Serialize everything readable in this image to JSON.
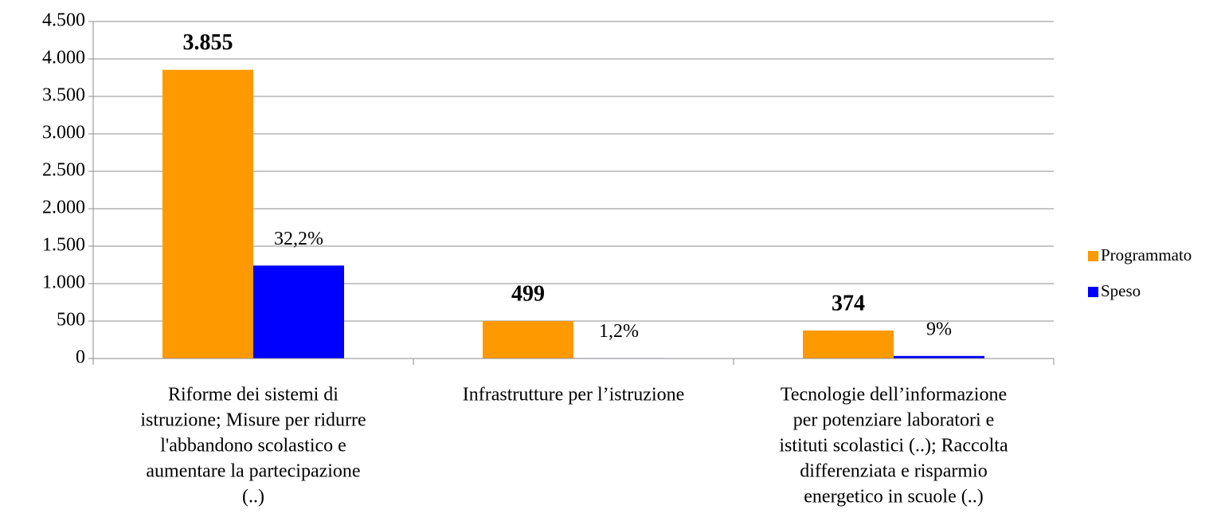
{
  "chart_data": {
    "type": "bar",
    "categories": [
      [
        "Riforme dei sistemi di",
        "istruzione; Misure per ridurre",
        "l'abbandono scolastico e",
        "aumentare la partecipazione",
        "(..)"
      ],
      [
        "Infrastrutture  per l’istruzione"
      ],
      [
        "Tecnologie dell’informazione",
        "per potenziare laboratori e",
        "istituti scolastici (..);  Raccolta",
        "differenziata e risparmio",
        "energetico in scuole (..)"
      ]
    ],
    "series": [
      {
        "name": "Programmato",
        "color": "#ff9900",
        "values": [
          3855,
          499,
          374
        ],
        "value_labels": [
          "3.855",
          "499",
          "374"
        ]
      },
      {
        "name": "Speso",
        "color": "#0000ff",
        "values": [
          1241,
          6,
          34
        ],
        "shares": [
          32.2,
          1.2,
          9
        ],
        "share_labels": [
          "32,2%",
          "1,2%",
          "9%"
        ]
      }
    ],
    "ylim": [
      0,
      4500
    ],
    "yticks": [
      0,
      {
        "value": 500,
        "label": "500"
      },
      {
        "value": 1000,
        "label": "1.000"
      },
      {
        "value": 1500,
        "label": "1.500"
      },
      {
        "value": 2000,
        "label": "2.000"
      },
      {
        "value": 2500,
        "label": "2.500"
      },
      {
        "value": 3000,
        "label": "3.000"
      },
      {
        "value": 3500,
        "label": "3.500"
      },
      {
        "value": 4000,
        "label": "4.000"
      },
      {
        "value": 4500,
        "label": "4.500"
      }
    ],
    "grid": true,
    "legend": "right"
  }
}
